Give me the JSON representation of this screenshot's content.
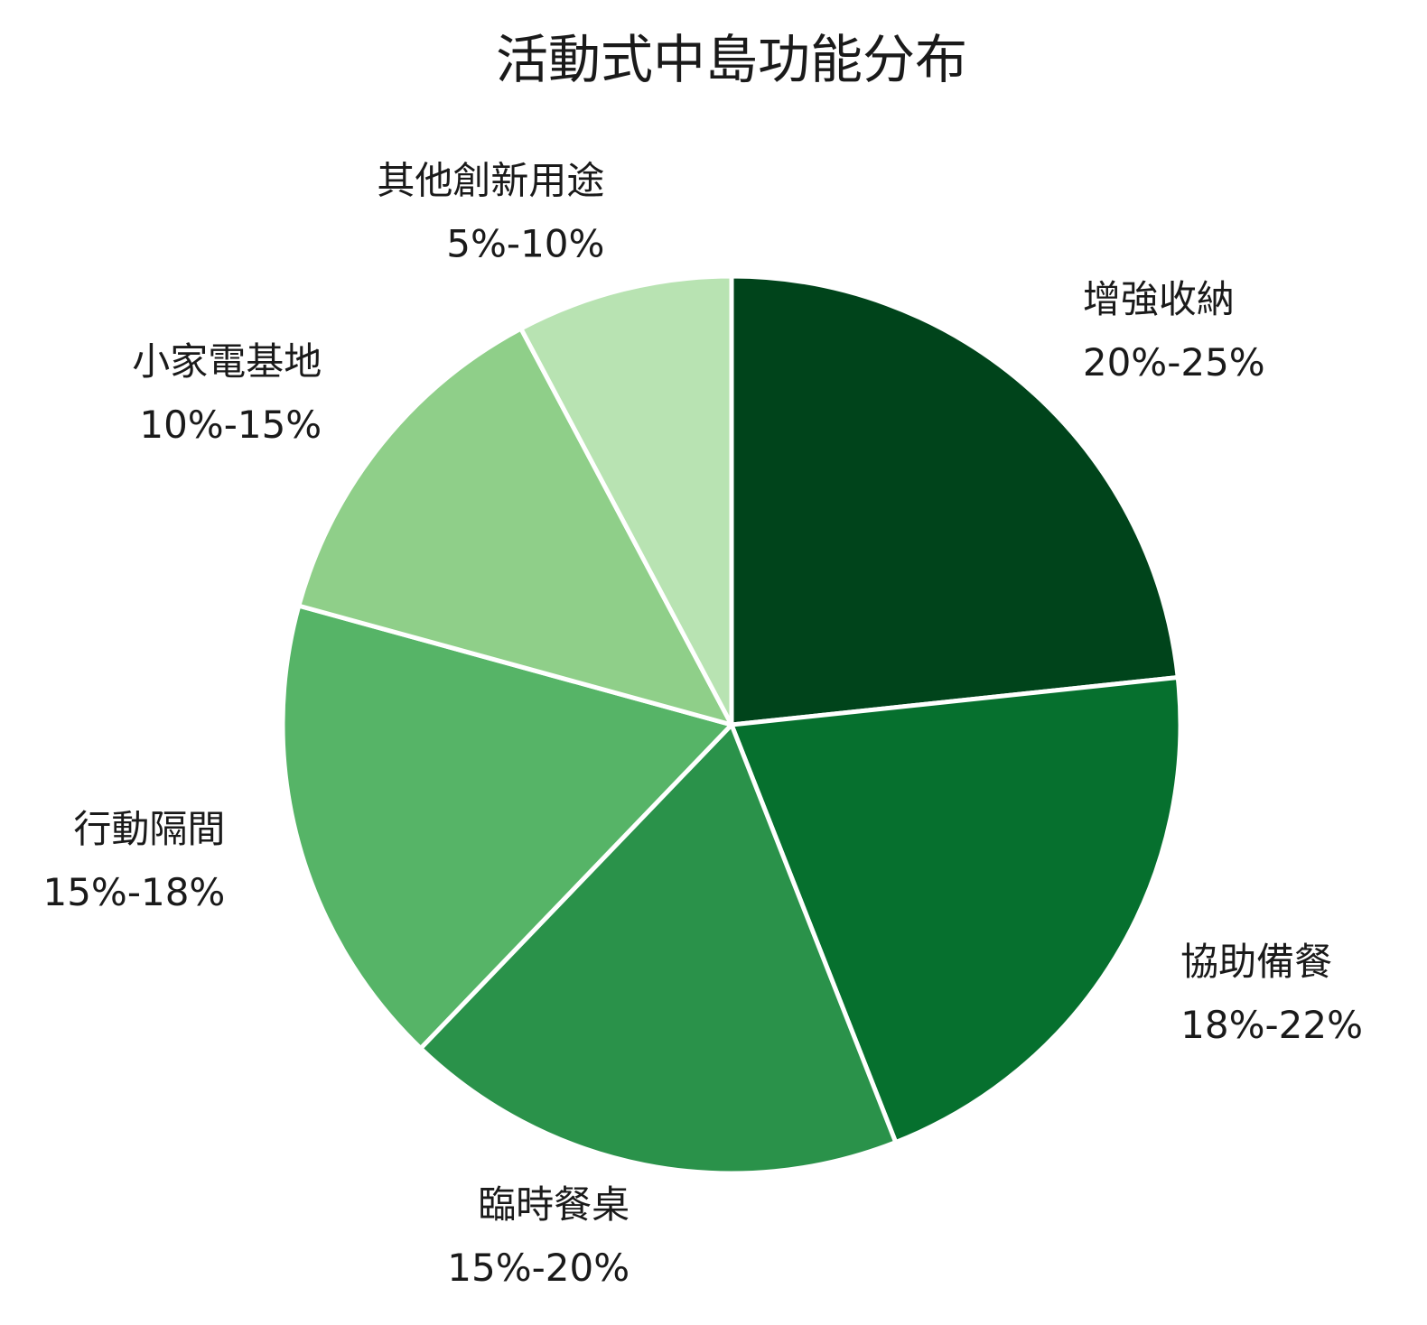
{
  "chart_data": {
    "type": "pie",
    "title": "活動式中島功能分布",
    "categories": [
      "增強收納",
      "協助備餐",
      "臨時餐桌",
      "行動隔間",
      "小家電基地",
      "其他創新用途"
    ],
    "values": [
      22.5,
      20,
      17.5,
      16.5,
      12.5,
      7.5
    ],
    "value_labels": [
      "20%-25%",
      "18%-22%",
      "15%-20%",
      "15%-18%",
      "10%-15%",
      "5%-10%"
    ],
    "colors": [
      "#00441b",
      "#06702e",
      "#2a924a",
      "#56b467",
      "#8fcf89",
      "#b8e3b2"
    ],
    "start_angle": 90,
    "direction": "clockwise"
  }
}
